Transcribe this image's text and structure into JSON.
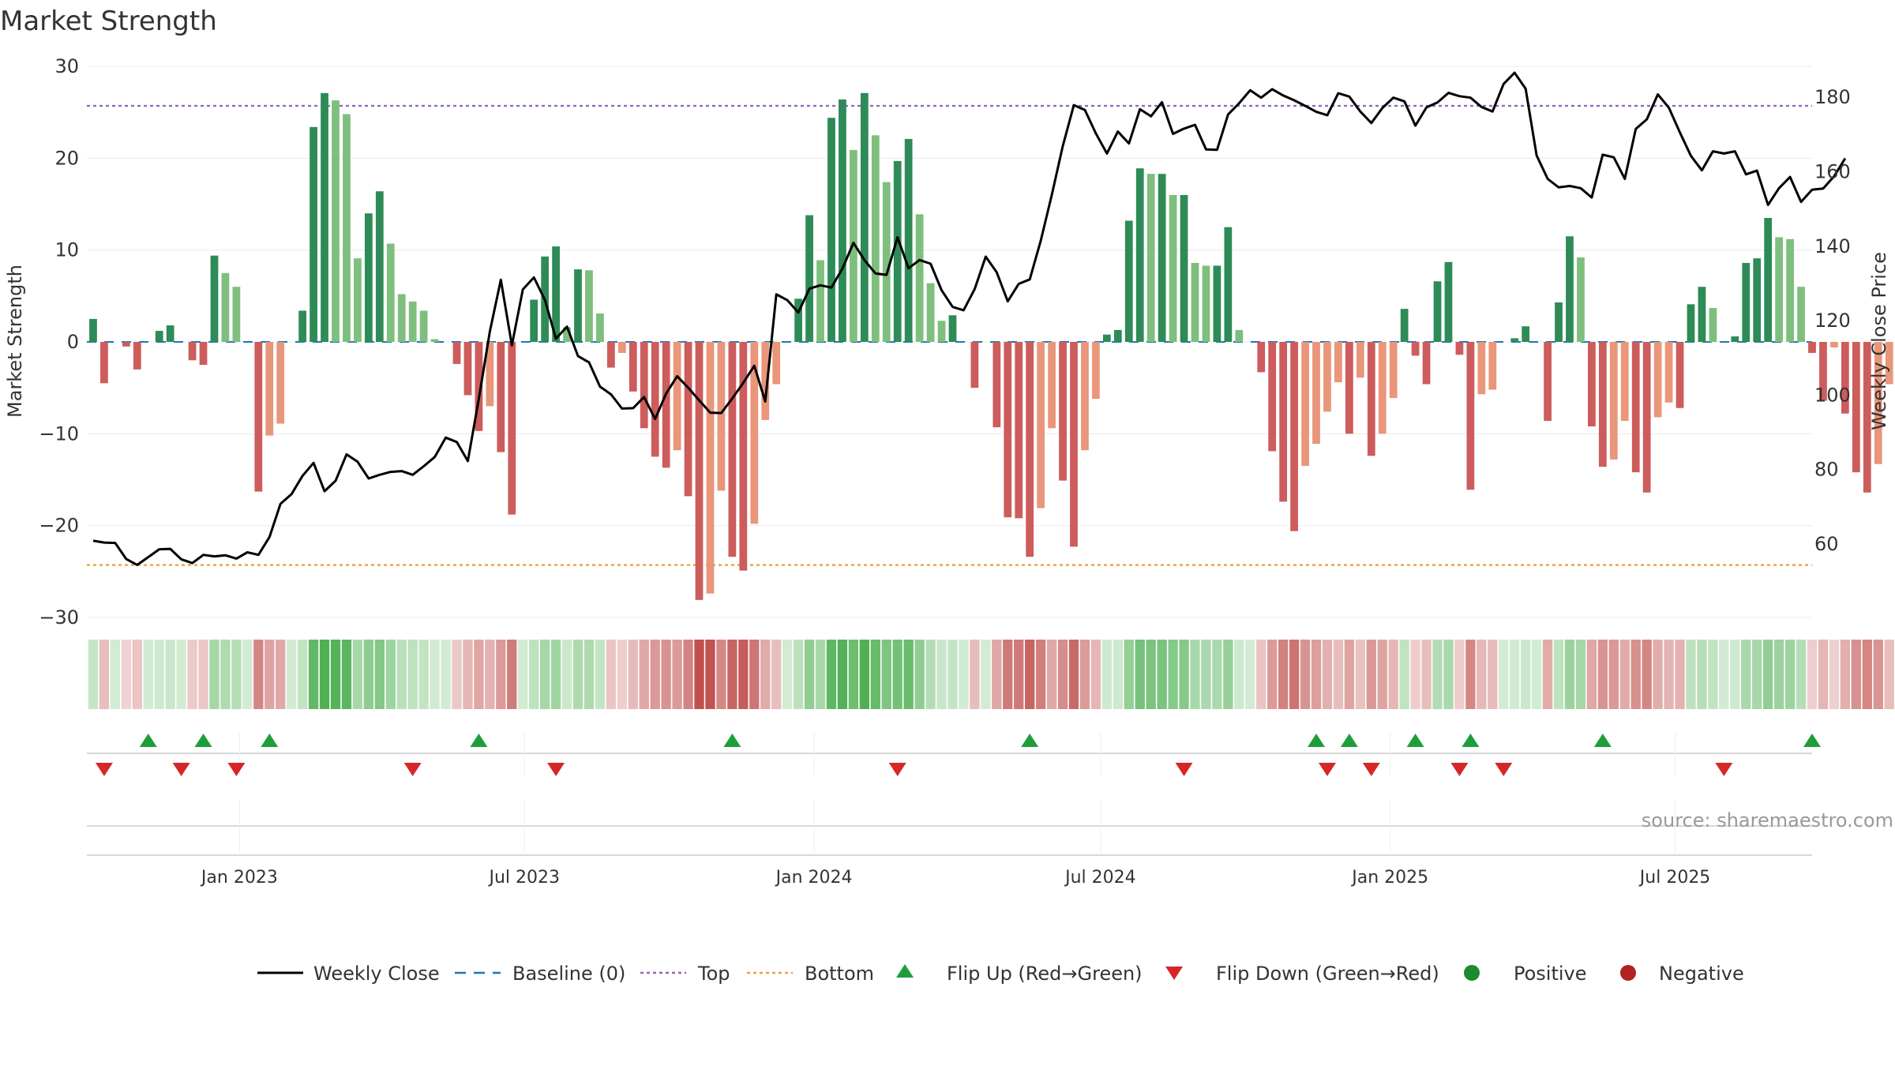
{
  "chart_data": {
    "type": "bar",
    "title": "Market Strength",
    "ylabel": "Market Strength",
    "y2label": "Weekly Close Price",
    "ylim": [
      -30,
      30
    ],
    "y2lim": [
      40.3,
      190
    ],
    "yticks": [
      -30,
      -20,
      -10,
      0,
      10,
      20,
      30
    ],
    "y2ticks": [
      60,
      80,
      100,
      120,
      140,
      160,
      180
    ],
    "top_line": 25.7,
    "bottom_line": -24.3,
    "x_start": "2022-09-30",
    "x_step_days": 7,
    "x_range": [
      "2022-09-26",
      "2025-09-26"
    ],
    "x_ticks": [
      {
        "date": "2023-01-01",
        "label": "Jan 2023"
      },
      {
        "date": "2023-07-01",
        "label": "Jul 2023"
      },
      {
        "date": "2024-01-01",
        "label": "Jan 2024"
      },
      {
        "date": "2024-07-01",
        "label": "Jul 2024"
      },
      {
        "date": "2025-01-01",
        "label": "Jan 2025"
      },
      {
        "date": "2025-07-01",
        "label": "Jul 2025"
      }
    ],
    "strength": [
      2.5,
      -4.5,
      0,
      -0.5,
      -3,
      0,
      1.2,
      1.8,
      0,
      -2,
      -2.5,
      9.4,
      7.5,
      6,
      0,
      -16.3,
      -10.2,
      -8.9,
      0,
      3.4,
      23.4,
      27.1,
      26.3,
      24.8,
      9.1,
      14,
      16.4,
      10.7,
      5.2,
      4.4,
      3.4,
      0.3,
      0,
      -2.4,
      -5.8,
      -9.7,
      -7,
      -12,
      -18.8,
      0,
      4.6,
      9.3,
      10.4,
      1.6,
      7.9,
      7.8,
      3.1,
      -2.8,
      -1.2,
      -5.4,
      -9.4,
      -12.5,
      -13.7,
      -11.8,
      -16.8,
      -28.1,
      -27.4,
      -16.2,
      -23.4,
      -24.9,
      -19.8,
      -8.5,
      -4.6,
      0,
      4.7,
      13.8,
      8.9,
      24.4,
      26.4,
      20.9,
      27.1,
      22.5,
      17.4,
      19.7,
      22.1,
      13.9,
      6.4,
      2.3,
      2.9,
      0,
      -5,
      0,
      -9.3,
      -19.1,
      -19.2,
      -23.4,
      -18.1,
      -9.4,
      -15.1,
      -22.3,
      -11.8,
      -6.2,
      0.8,
      1.3,
      13.2,
      18.9,
      18.3,
      18.3,
      16,
      16,
      8.6,
      8.3,
      8.3,
      12.5,
      1.3,
      0,
      -3.3,
      -11.9,
      -17.4,
      -20.6,
      -13.5,
      -11.1,
      -7.6,
      -4.4,
      -10,
      -3.9,
      -12.4,
      -10,
      -6.1,
      3.6,
      -1.5,
      -4.6,
      6.6,
      8.7,
      -1.4,
      -16.1,
      -5.7,
      -5.2,
      0,
      0.4,
      1.7,
      0,
      -8.6,
      4.3,
      11.5,
      9.2,
      -9.2,
      -13.6,
      -12.8,
      -8.6,
      -14.2,
      -16.4,
      -8.2,
      -6.6,
      -7.2,
      4.1,
      6,
      3.7,
      0,
      0.6,
      8.6,
      9.1,
      13.5,
      11.4,
      11.2,
      6,
      -1.2,
      -6.4,
      -0.6,
      -7.8,
      -14.2,
      -16.4,
      -13.3,
      -4.6,
      4.6
    ],
    "close": [
      60.9,
      60.4,
      60.3,
      56,
      54.4,
      56.5,
      58.6,
      58.7,
      55.9,
      54.9,
      57.1,
      56.7,
      57,
      56.1,
      57.8,
      57.1,
      61.9,
      70.8,
      73.4,
      78.3,
      81.8,
      74.2,
      77,
      84.1,
      82.1,
      77.6,
      78.6,
      79.4,
      79.6,
      78.6,
      80.9,
      83.4,
      88.6,
      87.4,
      82.3,
      99,
      117.1,
      131,
      113.4,
      128.4,
      131.6,
      125.6,
      115.2,
      118.4,
      110.5,
      108.8,
      102.3,
      100.2,
      96.4,
      96.5,
      99.5,
      93.6,
      100.4,
      105.1,
      102,
      98.6,
      95.3,
      95.2,
      99.1,
      103.3,
      107.9,
      98.3,
      127.1,
      125.5,
      122.2,
      128.6,
      129.5,
      128.9,
      134,
      140.9,
      136.3,
      132.7,
      132.3,
      142.4,
      134.1,
      136.3,
      135.3,
      128.2,
      123.7,
      122.8,
      128.5,
      137.2,
      133,
      125.2,
      129.9,
      131.1,
      141.5,
      153.8,
      166.9,
      177.9,
      176.6,
      170.3,
      164.9,
      170.8,
      167.6,
      176.8,
      174.9,
      178.7,
      170.2,
      171.6,
      172.6,
      166,
      165.9,
      175.4,
      178.4,
      181.9,
      179.9,
      182.2,
      180.5,
      179.2,
      177.7,
      176.1,
      175.2,
      181.1,
      180.2,
      176.2,
      173.1,
      177.1,
      179.9,
      178.9,
      172.4,
      177.3,
      178.6,
      181.2,
      180.3,
      179.9,
      177.4,
      176.2,
      183.6,
      186.6,
      182.3,
      164.4,
      158.1,
      155.8,
      156.2,
      155.6,
      153.1,
      164.6,
      163.9,
      158.1,
      171.5,
      174.1,
      180.8,
      177.2,
      170.6,
      164.3,
      160.4,
      165.5,
      164.9,
      165.5,
      159.3,
      160.3,
      151.1,
      155.6,
      158.6,
      151.9,
      155.2,
      155.5,
      158.8,
      163.6
    ],
    "flip_up_idx": [
      5,
      10,
      16,
      35,
      58,
      85,
      111,
      114,
      120,
      125,
      137,
      156
    ],
    "flip_down_idx": [
      1,
      8,
      13,
      29,
      42,
      73,
      99,
      112,
      116,
      124,
      128,
      148
    ],
    "legend": [
      "Weekly Close",
      "Baseline (0)",
      "Top",
      "Bottom",
      "Flip Up (Red→Green)",
      "Flip Down (Green→Red)",
      "Positive",
      "Negative"
    ],
    "source": "source: sharemaestro.com"
  },
  "colors": {
    "pos_strong": "#2e8b57",
    "pos_light": "#7ebf7e",
    "neg_strong": "#cd5c5c",
    "neg_light": "#e9967a",
    "close": "#000000",
    "baseline": "#1f77b4",
    "top": "#9467bd",
    "bottom": "#e6a33a",
    "flip_up": "#1e9e3a",
    "flip_down": "#d62728",
    "positive": "#1e8a2e",
    "negative": "#b22222"
  }
}
